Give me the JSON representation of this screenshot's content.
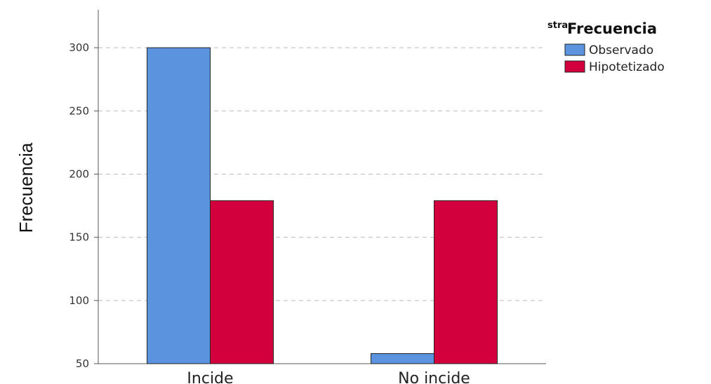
{
  "chart_data": {
    "type": "bar",
    "title": "",
    "xlabel": "",
    "ylabel": "Frecuencia",
    "categories": [
      "Incide",
      "No incide"
    ],
    "series": [
      {
        "name": "Observado",
        "values": [
          300,
          58
        ],
        "color": "#5b93de"
      },
      {
        "name": "Hipotetizado",
        "values": [
          179,
          179
        ],
        "color": "#d2003d"
      }
    ],
    "ylim": [
      50,
      330
    ],
    "yticks": [
      50,
      100,
      150,
      200,
      250,
      300
    ],
    "grid": true,
    "legend": {
      "placement": "top-right",
      "title": "Frecuencia",
      "title_prefix": "stra"
    }
  }
}
